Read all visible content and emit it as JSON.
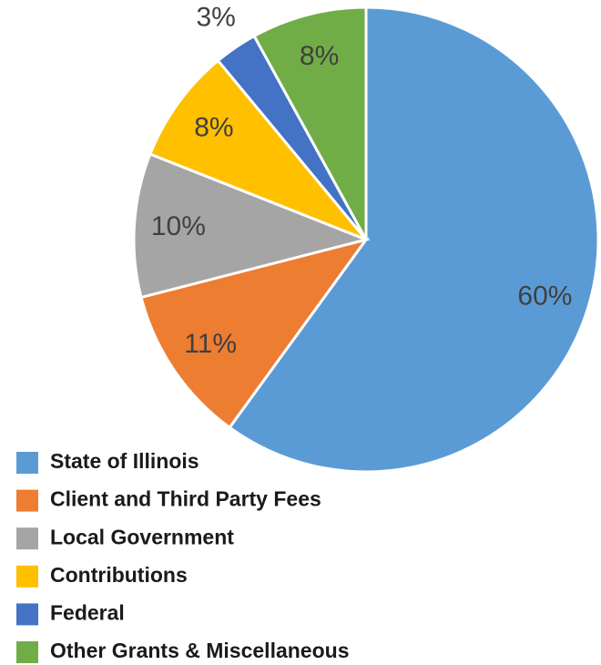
{
  "chart_data": {
    "type": "pie",
    "categories": [
      "State of Illinois",
      "Client and Third Party Fees",
      "Local Government",
      "Contributions",
      "Federal",
      "Other Grants & Miscellaneous"
    ],
    "values": [
      60,
      11,
      10,
      8,
      3,
      8
    ],
    "value_labels": [
      "60%",
      "11%",
      "10%",
      "8%",
      "3%",
      "8%"
    ],
    "colors": [
      "#5b9bd5",
      "#ed7d31",
      "#a5a5a5",
      "#ffc000",
      "#4472c4",
      "#70ad47"
    ],
    "legend": "bottom-left"
  }
}
